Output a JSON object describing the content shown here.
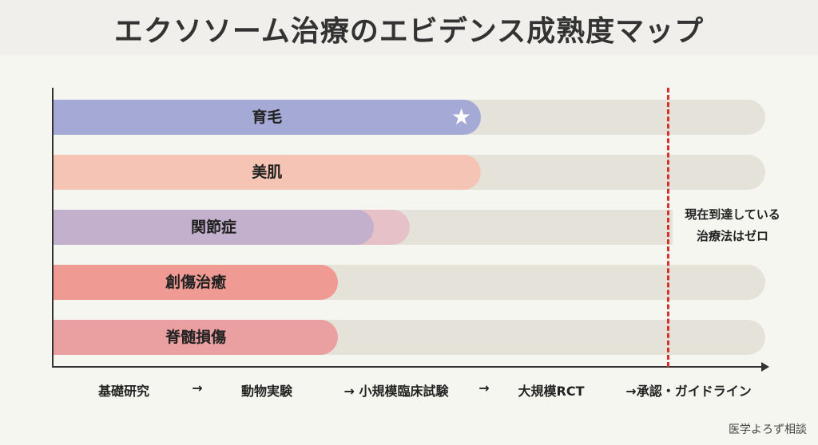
{
  "title": "エクソソーム治療のエビデンス成熟度マップ",
  "rows": [
    {
      "label": "育毛",
      "progress": 0.6,
      "color": "#a5a9d6",
      "star": true,
      "star_icon": "star-icon"
    },
    {
      "label": "美肌",
      "progress": 0.6,
      "color": "#f6c4b4"
    },
    {
      "label": "関節症",
      "progress": 0.45,
      "partial_progress": 0.5,
      "color": "#c3b0cc",
      "partial_color": "#e6c2c8"
    },
    {
      "label": "創傷治癒",
      "progress": 0.4,
      "color": "#ef9a92"
    },
    {
      "label": "脊髄損傷",
      "progress": 0.4,
      "color": "#eaa0a0"
    }
  ],
  "track_color": "#e5e2d9",
  "stages": [
    "基礎研究",
    "→",
    "動物実験",
    "→ 小規模臨床試験",
    "→",
    "大規模RCT",
    "→承認・ガイドライン"
  ],
  "threshold": {
    "color": "#d9302c",
    "note_line1": "現在到達している",
    "note_line2": "治療法はゼロ"
  },
  "credit": "医学よろず相談"
}
